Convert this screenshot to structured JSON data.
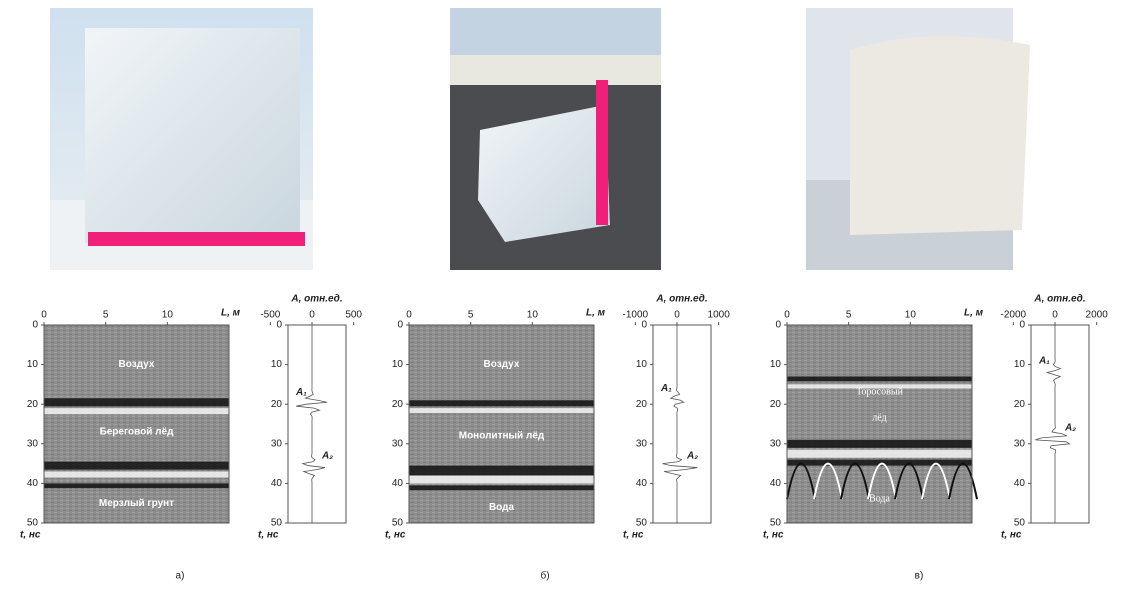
{
  "panels": [
    {
      "caption": "а)",
      "radargram": {
        "x_label": "L, м",
        "y_label": "t, нс",
        "xlim": [
          0,
          15
        ],
        "xticks": [
          0,
          5,
          10
        ],
        "ylim": [
          0,
          50
        ],
        "yticks": [
          0,
          10,
          20,
          30,
          40,
          50
        ],
        "layers": [
          "Воздух",
          "Береговой лёд",
          "Мерзлый грунт"
        ]
      },
      "trace": {
        "x_label": "A, отн.ед.",
        "y_label": "t, нс",
        "xlim": [
          -600,
          600
        ],
        "xticks": [
          -500,
          0,
          500
        ],
        "ylim": [
          0,
          50
        ],
        "yticks": [
          0,
          10,
          20,
          30,
          40,
          50
        ],
        "markers": [
          "A₁",
          "A₂"
        ]
      }
    },
    {
      "caption": "б)",
      "radargram": {
        "x_label": "L, м",
        "y_label": "t, нс",
        "xlim": [
          0,
          15
        ],
        "xticks": [
          0,
          5,
          10
        ],
        "ylim": [
          0,
          50
        ],
        "yticks": [
          0,
          10,
          20,
          30,
          40,
          50
        ],
        "layers": [
          "Воздух",
          "Монолитный лёд",
          "Вода"
        ]
      },
      "trace": {
        "x_label": "A, отн.ед.",
        "y_label": "t, нс",
        "xlim": [
          -1200,
          1200
        ],
        "xticks": [
          -1000,
          0,
          1000
        ],
        "ylim": [
          0,
          50
        ],
        "yticks": [
          0,
          10,
          20,
          30,
          40,
          50
        ],
        "markers": [
          "A₁",
          "A₂"
        ]
      }
    },
    {
      "caption": "в)",
      "radargram": {
        "x_label": "L, м",
        "y_label": "t, нс",
        "xlim": [
          0,
          15
        ],
        "xticks": [
          0,
          5,
          10
        ],
        "ylim": [
          0,
          50
        ],
        "yticks": [
          0,
          10,
          20,
          30,
          40,
          50
        ],
        "layers": [
          "Торосовый",
          "лёд",
          "Вода"
        ]
      },
      "trace": {
        "x_label": "A, отн.ед.",
        "y_label": "t, нс",
        "xlim": [
          -2400,
          2400
        ],
        "xticks": [
          -2000,
          0,
          2000
        ],
        "ylim": [
          0,
          50
        ],
        "yticks": [
          0,
          10,
          20,
          30,
          40,
          50
        ],
        "markers": [
          "A₁",
          "A₂"
        ]
      }
    }
  ]
}
